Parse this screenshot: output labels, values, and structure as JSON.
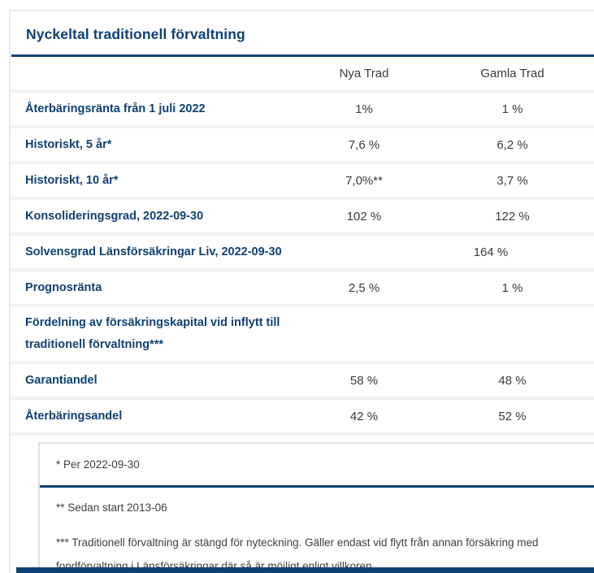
{
  "page": {
    "title": "Nyckeltal traditionell förvaltning"
  },
  "colors": {
    "brand_navy": "#0e4173",
    "row_separator": "#f3f3f3",
    "label_text": "#0e4173",
    "value_text": "#3a3a3a"
  },
  "table": {
    "columns": [
      "Nya Trad",
      "Gamla Trad"
    ],
    "rows": [
      {
        "label": "Återbäringsränta från 1 juli 2022",
        "nya": "1%",
        "gamla": "1 %"
      },
      {
        "label": "Historiskt, 5 år*",
        "nya": "7,6 %",
        "gamla": "6,2 %"
      },
      {
        "label": "Historiskt, 10 år*",
        "nya": "7,0%**",
        "gamla": "3,7 %"
      },
      {
        "label": "Konsolideringsgrad, 2022-09-30",
        "nya": "102 %",
        "gamla": "122 %"
      },
      {
        "label": "Solvensgrad Länsförsäkringar Liv, 2022-09-30",
        "nya": "",
        "gamla": "164 %"
      },
      {
        "label": "Prognosränta",
        "nya": "2,5 %",
        "gamla": "1 %"
      },
      {
        "label": "Fördelning av försäkringskapital vid inflytt till traditionell förvaltning***",
        "nya": "",
        "gamla": ""
      },
      {
        "label": "Garantiandel",
        "nya": "58 %",
        "gamla": "48 %"
      },
      {
        "label": "Återbäringsandel",
        "nya": "42 %",
        "gamla": "52 %"
      }
    ]
  },
  "footnotes": {
    "note1": "* Per 2022-09-30",
    "note2": "** Sedan start 2013-06",
    "note3": "*** Traditionell förvaltning är stängd för nyteckning. Gäller endast vid flytt från annan försäkring med fondförvaltning i Länsförsäkringar där så är möjligt enligt villkoren."
  }
}
